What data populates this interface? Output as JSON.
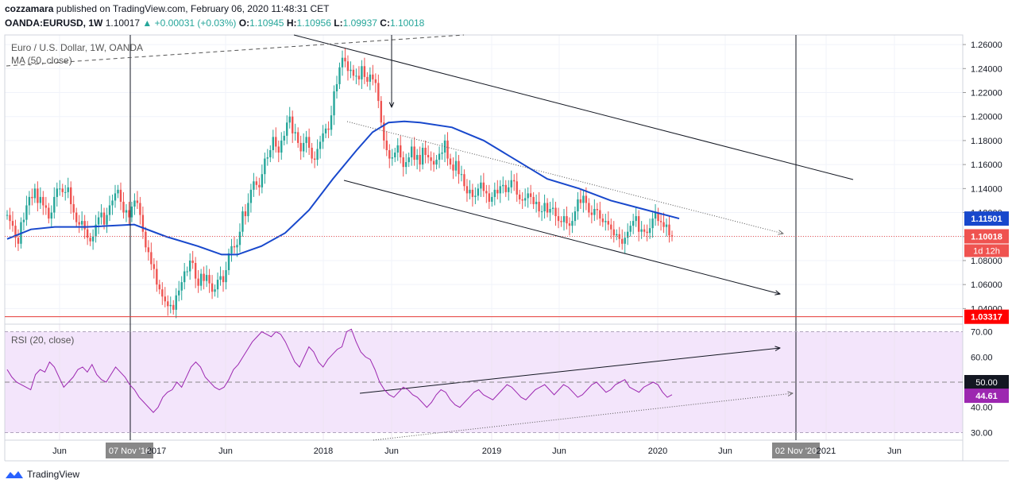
{
  "header": {
    "publisher": "cozzamara",
    "published_text": "published on TradingView.com, February 06, 2020 11:48:31 CET",
    "symbol": "OANDA:EURUSD, 1W",
    "last": "1.10017",
    "change": "+0.00031 (+0.03%)",
    "open_label": "O:",
    "open": "1.10945",
    "high_label": "H:",
    "high": "1.10956",
    "low_label": "L:",
    "low": "1.09937",
    "close_label": "C:",
    "close": "1.10018"
  },
  "legend": {
    "main": "Euro / U.S. Dollar, 1W, OANDA",
    "ma": "MA (50, close)",
    "rsi": "RSI (20, close)"
  },
  "colors": {
    "bull": "#26a69a",
    "bear": "#ef5350",
    "ma": "#1848cc",
    "rsi_line": "#9c27b0",
    "rsi_band": "#f3e5fb",
    "price_badge": "#ef5350",
    "ma_badge": "#1848cc",
    "support_badge": "#ff0000",
    "rsi_badge": "#9c27b0"
  },
  "footer": {
    "brand": "TradingView"
  },
  "chart_data": {
    "type": "candlestick",
    "price_axis": {
      "ticks": [
        "1.26000",
        "1.24000",
        "1.22000",
        "1.20000",
        "1.18000",
        "1.16000",
        "1.14000",
        "1.12000",
        "1.10000",
        "1.08000",
        "1.06000",
        "1.04000"
      ],
      "range": [
        1.027,
        1.268
      ]
    },
    "rsi_axis": {
      "ticks": [
        "70.00",
        "60.00",
        "50.00",
        "40.00",
        "30.00"
      ],
      "range": [
        27,
        73
      ]
    },
    "time_axis": {
      "labels": [
        "Jun",
        "07 Nov '16",
        "2017",
        "Jun",
        "2018",
        "Jun",
        "2019",
        "Jun",
        "2020",
        "Jun",
        "02 Nov '20",
        "2021",
        "Jun"
      ]
    },
    "badges": {
      "ma_value": "1.11501",
      "price_value": "1.10018",
      "countdown": "1d 12h",
      "support_value": "1.03317",
      "rsi_mid": "50.00",
      "rsi_value": "44.61"
    },
    "support_level": 1.03317,
    "last_price": 1.10018,
    "weekly_closes": [
      1.118,
      1.113,
      1.109,
      1.099,
      1.094,
      1.112,
      1.114,
      1.126,
      1.133,
      1.132,
      1.14,
      1.128,
      1.133,
      1.126,
      1.124,
      1.115,
      1.12,
      1.133,
      1.14,
      1.14,
      1.137,
      1.137,
      1.141,
      1.127,
      1.12,
      1.112,
      1.11,
      1.113,
      1.106,
      1.099,
      1.096,
      1.1,
      1.11,
      1.116,
      1.12,
      1.11,
      1.118,
      1.126,
      1.13,
      1.136,
      1.139,
      1.129,
      1.12,
      1.122,
      1.116,
      1.125,
      1.13,
      1.128,
      1.118,
      1.104,
      1.091,
      1.087,
      1.077,
      1.073,
      1.06,
      1.056,
      1.05,
      1.046,
      1.042,
      1.043,
      1.039,
      1.051,
      1.055,
      1.062,
      1.071,
      1.071,
      1.08,
      1.078,
      1.065,
      1.059,
      1.069,
      1.063,
      1.068,
      1.061,
      1.054,
      1.056,
      1.064,
      1.067,
      1.062,
      1.072,
      1.086,
      1.092,
      1.091,
      1.093,
      1.104,
      1.121,
      1.117,
      1.128,
      1.139,
      1.146,
      1.143,
      1.141,
      1.152,
      1.165,
      1.166,
      1.172,
      1.183,
      1.175,
      1.17,
      1.18,
      1.184,
      1.195,
      1.2,
      1.186,
      1.187,
      1.178,
      1.171,
      1.178,
      1.183,
      1.174,
      1.165,
      1.164,
      1.173,
      1.179,
      1.186,
      1.19,
      1.189,
      1.201,
      1.221,
      1.227,
      1.241,
      1.249,
      1.246,
      1.238,
      1.239,
      1.234,
      1.234,
      1.231,
      1.242,
      1.233,
      1.229,
      1.235,
      1.231,
      1.228,
      1.213,
      1.195,
      1.18,
      1.172,
      1.165,
      1.166,
      1.17,
      1.176,
      1.166,
      1.158,
      1.162,
      1.166,
      1.175,
      1.164,
      1.168,
      1.16,
      1.174,
      1.168,
      1.166,
      1.163,
      1.16,
      1.164,
      1.169,
      1.17,
      1.18,
      1.165,
      1.16,
      1.155,
      1.163,
      1.152,
      1.152,
      1.142,
      1.136,
      1.139,
      1.133,
      1.134,
      1.14,
      1.145,
      1.138,
      1.136,
      1.129,
      1.133,
      1.139,
      1.136,
      1.142,
      1.143,
      1.137,
      1.141,
      1.147,
      1.146,
      1.135,
      1.131,
      1.13,
      1.132,
      1.136,
      1.133,
      1.127,
      1.129,
      1.121,
      1.121,
      1.128,
      1.12,
      1.123,
      1.124,
      1.117,
      1.113,
      1.112,
      1.117,
      1.111,
      1.109,
      1.113,
      1.121,
      1.131,
      1.128,
      1.134,
      1.128,
      1.12,
      1.118,
      1.123,
      1.122,
      1.115,
      1.112,
      1.113,
      1.11,
      1.106,
      1.101,
      1.102,
      1.098,
      1.094,
      1.099,
      1.104,
      1.109,
      1.113,
      1.117,
      1.104,
      1.106,
      1.104,
      1.103,
      1.107,
      1.115,
      1.12,
      1.113,
      1.112,
      1.108,
      1.11,
      1.101,
      1.1
    ],
    "ma50_path": [
      [
        0,
        1.098
      ],
      [
        30,
        1.106
      ],
      [
        60,
        1.108
      ],
      [
        100,
        1.108
      ],
      [
        160,
        1.11
      ],
      [
        200,
        1.1
      ],
      [
        240,
        1.092
      ],
      [
        270,
        1.085
      ],
      [
        290,
        1.085
      ],
      [
        320,
        1.092
      ],
      [
        350,
        1.103
      ],
      [
        380,
        1.122
      ],
      [
        410,
        1.148
      ],
      [
        440,
        1.172
      ],
      [
        460,
        1.187
      ],
      [
        480,
        1.195
      ],
      [
        500,
        1.196
      ],
      [
        520,
        1.195
      ],
      [
        560,
        1.191
      ],
      [
        600,
        1.18
      ],
      [
        640,
        1.164
      ],
      [
        680,
        1.148
      ],
      [
        720,
        1.14
      ],
      [
        760,
        1.13
      ],
      [
        800,
        1.123
      ],
      [
        846,
        1.115
      ]
    ],
    "rsi_series": [
      55,
      52,
      50,
      49,
      48,
      47,
      53,
      55,
      54,
      58,
      56,
      52,
      48,
      50,
      52,
      55,
      56,
      54,
      57,
      53,
      51,
      50,
      53,
      56,
      54,
      52,
      49,
      47,
      44,
      42,
      40,
      38,
      40,
      44,
      46,
      47,
      50,
      48,
      52,
      56,
      58,
      56,
      52,
      50,
      48,
      47,
      48,
      51,
      55,
      57,
      60,
      63,
      66,
      68,
      70,
      69,
      68,
      70,
      69,
      66,
      62,
      58,
      56,
      60,
      64,
      62,
      58,
      56,
      59,
      61,
      63,
      64,
      70,
      71,
      66,
      62,
      60,
      59,
      55,
      50,
      47,
      45,
      44,
      46,
      48,
      47,
      45,
      44,
      42,
      40,
      42,
      45,
      47,
      46,
      43,
      41,
      40,
      42,
      44,
      46,
      47,
      45,
      44,
      43,
      45,
      47,
      49,
      48,
      46,
      44,
      43,
      45,
      47,
      48,
      49,
      47,
      45,
      47,
      49,
      48,
      46,
      44,
      45,
      47,
      49,
      50,
      48,
      46,
      47,
      49,
      50,
      51,
      48,
      47,
      46,
      48,
      49,
      50,
      49,
      46,
      44,
      45
    ],
    "annotations": [
      "down-channel",
      "descending-trendline",
      "rsi-bullish-divergence",
      "support-line",
      "vertical-date-markers"
    ]
  }
}
